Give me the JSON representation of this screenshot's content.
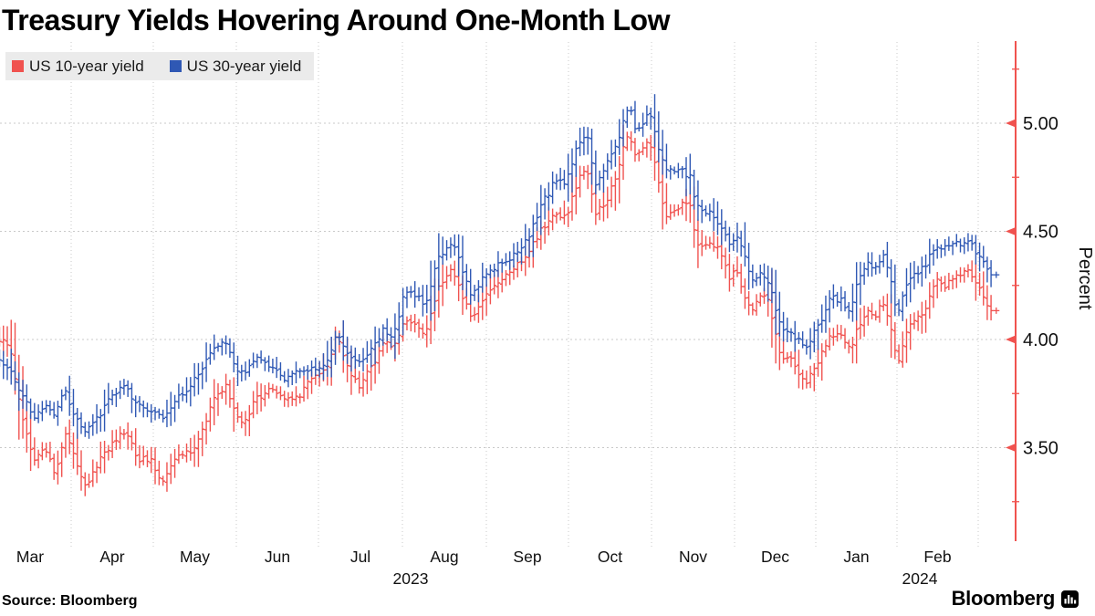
{
  "title": "Treasury Yields Hovering Around One-Month Low",
  "source": "Source: Bloomberg",
  "brand": "Bloomberg",
  "colors": {
    "red_series": "#f0524f",
    "blue_series": "#2f58b4",
    "axis": "#f0524f",
    "grid": "#c9c9c9",
    "text": "#111111",
    "legend_bg": "#ebebeb"
  },
  "chart_data": {
    "type": "ohlc",
    "title": "Treasury Yields Hovering Around One-Month Low",
    "ylabel": "Percent",
    "y_ticks": [
      "5.00",
      "4.50",
      "4.00",
      "3.50"
    ],
    "y_minor_ticks": [
      5.25,
      4.75,
      4.25,
      3.75,
      3.25
    ],
    "ylim": [
      3.07,
      5.34
    ],
    "grid": true,
    "legend_position": "top-left",
    "x_months": [
      "Mar",
      "Apr",
      "May",
      "Jun",
      "Jul",
      "Aug",
      "Sep",
      "Oct",
      "Nov",
      "Dec",
      "Jan",
      "Feb"
    ],
    "year_labels": [
      "2023",
      "2024"
    ],
    "series": [
      {
        "name": "US 10-year yield",
        "color": "#f0524f",
        "anchors": [
          [
            0.0,
            3.96
          ],
          [
            0.08,
            4.02
          ],
          [
            0.25,
            3.96
          ],
          [
            0.42,
            3.62
          ],
          [
            0.55,
            3.44
          ],
          [
            0.68,
            3.5
          ],
          [
            0.8,
            3.38
          ],
          [
            0.92,
            3.56
          ],
          [
            1.02,
            3.48
          ],
          [
            1.18,
            3.32
          ],
          [
            1.35,
            3.44
          ],
          [
            1.5,
            3.52
          ],
          [
            1.65,
            3.58
          ],
          [
            1.82,
            3.45
          ],
          [
            1.98,
            3.44
          ],
          [
            2.1,
            3.33
          ],
          [
            2.28,
            3.47
          ],
          [
            2.42,
            3.47
          ],
          [
            2.58,
            3.56
          ],
          [
            2.72,
            3.71
          ],
          [
            2.87,
            3.8
          ],
          [
            2.98,
            3.66
          ],
          [
            3.08,
            3.61
          ],
          [
            3.25,
            3.73
          ],
          [
            3.42,
            3.77
          ],
          [
            3.6,
            3.73
          ],
          [
            3.77,
            3.74
          ],
          [
            3.93,
            3.83
          ],
          [
            4.1,
            3.87
          ],
          [
            4.22,
            4.04
          ],
          [
            4.33,
            3.88
          ],
          [
            4.47,
            3.78
          ],
          [
            4.62,
            3.86
          ],
          [
            4.77,
            3.99
          ],
          [
            4.9,
            3.96
          ],
          [
            5.03,
            4.1
          ],
          [
            5.15,
            4.06
          ],
          [
            5.28,
            4.03
          ],
          [
            5.42,
            4.23
          ],
          [
            5.57,
            4.33
          ],
          [
            5.68,
            4.24
          ],
          [
            5.82,
            4.1
          ],
          [
            5.97,
            4.18
          ],
          [
            6.13,
            4.27
          ],
          [
            6.32,
            4.32
          ],
          [
            6.52,
            4.41
          ],
          [
            6.67,
            4.51
          ],
          [
            6.82,
            4.58
          ],
          [
            6.97,
            4.57
          ],
          [
            7.1,
            4.72
          ],
          [
            7.22,
            4.8
          ],
          [
            7.32,
            4.58
          ],
          [
            7.45,
            4.64
          ],
          [
            7.55,
            4.73
          ],
          [
            7.65,
            4.88
          ],
          [
            7.73,
            4.97
          ],
          [
            7.8,
            4.84
          ],
          [
            7.9,
            4.88
          ],
          [
            7.98,
            4.91
          ],
          [
            8.07,
            4.76
          ],
          [
            8.17,
            4.57
          ],
          [
            8.33,
            4.62
          ],
          [
            8.47,
            4.62
          ],
          [
            8.53,
            4.45
          ],
          [
            8.67,
            4.44
          ],
          [
            8.82,
            4.41
          ],
          [
            8.95,
            4.28
          ],
          [
            9.02,
            4.33
          ],
          [
            9.12,
            4.21
          ],
          [
            9.23,
            4.13
          ],
          [
            9.33,
            4.22
          ],
          [
            9.43,
            4.18
          ],
          [
            9.5,
            4.02
          ],
          [
            9.57,
            3.92
          ],
          [
            9.68,
            3.92
          ],
          [
            9.8,
            3.84
          ],
          [
            9.88,
            3.8
          ],
          [
            9.98,
            3.87
          ],
          [
            10.08,
            3.94
          ],
          [
            10.18,
            4.03
          ],
          [
            10.32,
            4.01
          ],
          [
            10.42,
            3.95
          ],
          [
            10.53,
            4.07
          ],
          [
            10.63,
            4.14
          ],
          [
            10.73,
            4.11
          ],
          [
            10.82,
            4.16
          ],
          [
            10.92,
            4.06
          ],
          [
            11.0,
            3.88
          ],
          [
            11.1,
            4.02
          ],
          [
            11.22,
            4.1
          ],
          [
            11.33,
            4.11
          ],
          [
            11.47,
            4.28
          ],
          [
            11.57,
            4.24
          ],
          [
            11.67,
            4.29
          ],
          [
            11.78,
            4.29
          ],
          [
            11.87,
            4.32
          ],
          [
            11.95,
            4.27
          ],
          [
            12.05,
            4.21
          ],
          [
            12.16,
            4.14
          ]
        ]
      },
      {
        "name": "US 30-year yield",
        "color": "#2f58b4",
        "anchors": [
          [
            0.0,
            3.86
          ],
          [
            0.08,
            3.93
          ],
          [
            0.25,
            3.87
          ],
          [
            0.42,
            3.73
          ],
          [
            0.55,
            3.63
          ],
          [
            0.68,
            3.7
          ],
          [
            0.8,
            3.65
          ],
          [
            0.92,
            3.78
          ],
          [
            1.02,
            3.67
          ],
          [
            1.18,
            3.57
          ],
          [
            1.35,
            3.65
          ],
          [
            1.5,
            3.74
          ],
          [
            1.65,
            3.79
          ],
          [
            1.82,
            3.69
          ],
          [
            1.98,
            3.68
          ],
          [
            2.1,
            3.63
          ],
          [
            2.28,
            3.73
          ],
          [
            2.42,
            3.78
          ],
          [
            2.58,
            3.87
          ],
          [
            2.72,
            3.95
          ],
          [
            2.87,
            3.99
          ],
          [
            2.98,
            3.88
          ],
          [
            3.08,
            3.84
          ],
          [
            3.25,
            3.91
          ],
          [
            3.42,
            3.88
          ],
          [
            3.6,
            3.82
          ],
          [
            3.77,
            3.85
          ],
          [
            3.93,
            3.86
          ],
          [
            4.1,
            3.89
          ],
          [
            4.22,
            4.05
          ],
          [
            4.33,
            3.94
          ],
          [
            4.47,
            3.89
          ],
          [
            4.62,
            3.95
          ],
          [
            4.77,
            4.04
          ],
          [
            4.9,
            4.02
          ],
          [
            5.03,
            4.23
          ],
          [
            5.15,
            4.2
          ],
          [
            5.28,
            4.17
          ],
          [
            5.42,
            4.38
          ],
          [
            5.57,
            4.45
          ],
          [
            5.68,
            4.37
          ],
          [
            5.82,
            4.2
          ],
          [
            5.97,
            4.29
          ],
          [
            6.13,
            4.35
          ],
          [
            6.32,
            4.38
          ],
          [
            6.52,
            4.47
          ],
          [
            6.67,
            4.62
          ],
          [
            6.82,
            4.72
          ],
          [
            6.97,
            4.73
          ],
          [
            7.1,
            4.88
          ],
          [
            7.22,
            4.97
          ],
          [
            7.32,
            4.7
          ],
          [
            7.45,
            4.8
          ],
          [
            7.55,
            4.87
          ],
          [
            7.65,
            4.99
          ],
          [
            7.73,
            5.09
          ],
          [
            7.8,
            4.97
          ],
          [
            7.9,
            5.01
          ],
          [
            7.98,
            5.06
          ],
          [
            8.07,
            4.91
          ],
          [
            8.17,
            4.77
          ],
          [
            8.33,
            4.79
          ],
          [
            8.47,
            4.75
          ],
          [
            8.53,
            4.61
          ],
          [
            8.67,
            4.59
          ],
          [
            8.82,
            4.54
          ],
          [
            8.95,
            4.44
          ],
          [
            9.02,
            4.49
          ],
          [
            9.12,
            4.38
          ],
          [
            9.23,
            4.28
          ],
          [
            9.33,
            4.31
          ],
          [
            9.43,
            4.25
          ],
          [
            9.5,
            4.16
          ],
          [
            9.57,
            4.04
          ],
          [
            9.68,
            4.04
          ],
          [
            9.8,
            3.99
          ],
          [
            9.88,
            3.96
          ],
          [
            9.98,
            4.03
          ],
          [
            10.08,
            4.09
          ],
          [
            10.18,
            4.2
          ],
          [
            10.32,
            4.18
          ],
          [
            10.42,
            4.13
          ],
          [
            10.53,
            4.28
          ],
          [
            10.63,
            4.36
          ],
          [
            10.73,
            4.33
          ],
          [
            10.82,
            4.4
          ],
          [
            10.92,
            4.28
          ],
          [
            11.0,
            4.11
          ],
          [
            11.1,
            4.23
          ],
          [
            11.22,
            4.31
          ],
          [
            11.33,
            4.33
          ],
          [
            11.47,
            4.44
          ],
          [
            11.57,
            4.41
          ],
          [
            11.67,
            4.45
          ],
          [
            11.78,
            4.44
          ],
          [
            11.87,
            4.47
          ],
          [
            11.95,
            4.41
          ],
          [
            12.05,
            4.36
          ],
          [
            12.16,
            4.29
          ]
        ]
      }
    ]
  }
}
